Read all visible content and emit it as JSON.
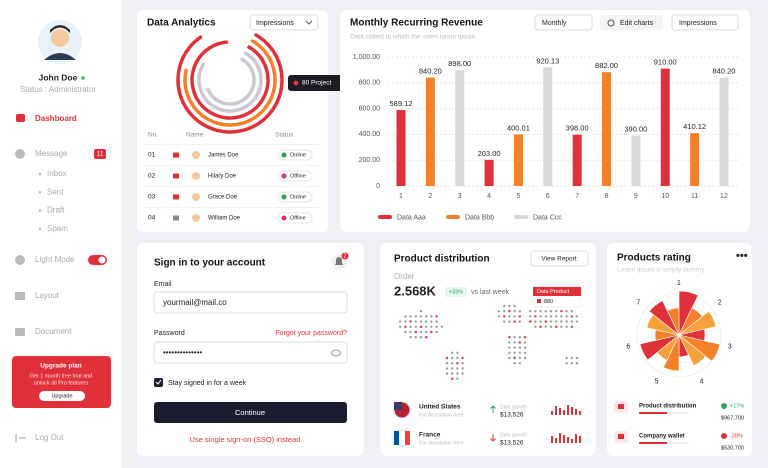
{
  "sidebar": {
    "name": "John Doe",
    "status": "Status : Administrator",
    "menu": [
      "Dashboard",
      "Message",
      "Light Mode",
      "Layout",
      "Document"
    ],
    "message_badge": "11",
    "submenu": [
      "Inbox",
      "Sent",
      "Draft",
      "Spam"
    ],
    "upgrade": {
      "title": "Upgrade plan",
      "text": [
        "Get 1 month free trial and",
        "unlock all Pro features"
      ],
      "button": "Upgrade"
    },
    "logout": "Log Out"
  },
  "analytics": {
    "title": "Data Analytics",
    "dropdown": "Impressions",
    "tooltip": "80 Project",
    "table": {
      "header": [
        "No.",
        "Name",
        "Status"
      ],
      "rows": [
        [
          "01",
          "James Doe",
          "Online"
        ],
        [
          "02",
          "Hilary Doe",
          "Offline"
        ],
        [
          "03",
          "Grace Doe",
          "Online"
        ],
        [
          "04",
          "William Doe",
          "Offline"
        ]
      ]
    }
  },
  "revenue": {
    "title": "Monthly Recurring Revenue",
    "subtitle": "Data collect to which the users lorem ipsum",
    "controls": [
      "Monthly",
      "Edit charts",
      "Impressions"
    ],
    "chart_data": {
      "type": "bar",
      "categories": [
        "1",
        "2",
        "3",
        "4",
        "5",
        "6",
        "7",
        "8",
        "9",
        "10",
        "11",
        "12"
      ],
      "ylim": [
        0,
        1000
      ],
      "yticks": [
        0,
        {
          "value": 200,
          "label": "200.00"
        },
        {
          "value": 400,
          "label": "400.00"
        },
        {
          "value": 600,
          "label": "600.00"
        },
        {
          "value": 800,
          "label": "800.00"
        },
        {
          "value": 1000,
          "label": "1,000.00"
        }
      ],
      "grid": true,
      "series": [
        {
          "name": "Data Aaa",
          "color": "#e0313a",
          "values": [
            589.12,
            null,
            null,
            203,
            null,
            null,
            398,
            null,
            null,
            910,
            null,
            null
          ],
          "value_labels": [
            "589.12",
            null,
            null,
            "203.00",
            null,
            null,
            "398.00",
            null,
            null,
            "910.00",
            null,
            null
          ]
        },
        {
          "name": "Data Bbb",
          "color": "#f5802a",
          "values": [
            null,
            840.2,
            null,
            null,
            400.01,
            null,
            null,
            882,
            null,
            null,
            410.12,
            null
          ],
          "value_labels": [
            null,
            "840.20",
            null,
            null,
            "400.01",
            null,
            null,
            "882.00",
            null,
            null,
            "410.12",
            null
          ]
        },
        {
          "name": "Data Ccc",
          "color": "#d9d9dc",
          "values": [
            null,
            null,
            898,
            null,
            null,
            920.13,
            null,
            null,
            390,
            null,
            null,
            840.2
          ],
          "value_labels": [
            null,
            null,
            "898.00",
            null,
            null,
            "920.13",
            null,
            null,
            "390.00",
            null,
            null,
            "840.20"
          ]
        }
      ]
    }
  },
  "signin": {
    "title": "Sign in to your account",
    "bell_badge": "2",
    "email_label": "Email",
    "email_value": "yourmail@mail.co",
    "password_label": "Password",
    "forgot": "Forgot your password?",
    "password_value": "••••••••••••••",
    "remember": "Stay signed in for a week",
    "button": "Continue",
    "sso": "Use single sign-on (SSO) instead"
  },
  "distribution": {
    "title": "Product distribution",
    "button": "View Report",
    "order_label": "Order",
    "order_value": "2.568K",
    "change": "+33%",
    "compare": "vs last week",
    "tooltip_title": "Data Product",
    "tooltip_value": "880",
    "countries": [
      {
        "name": "United States",
        "desc": "For description here",
        "metric": "Data growth",
        "value": "$13,526"
      },
      {
        "name": "France",
        "desc": "For description here",
        "metric": "Data growth",
        "value": "$13,526"
      }
    ]
  },
  "rating": {
    "title": "Products rating",
    "subtitle": "Lorem ipsum is simply dummy",
    "axis_labels": [
      "1",
      "2",
      "3",
      "4",
      "5",
      "6",
      "7"
    ],
    "items": [
      {
        "name": "Product distribution",
        "change": "+17%",
        "value": "$967,700"
      },
      {
        "name": "Company wallet",
        "change": "-28%",
        "value": "$530,700"
      }
    ]
  }
}
